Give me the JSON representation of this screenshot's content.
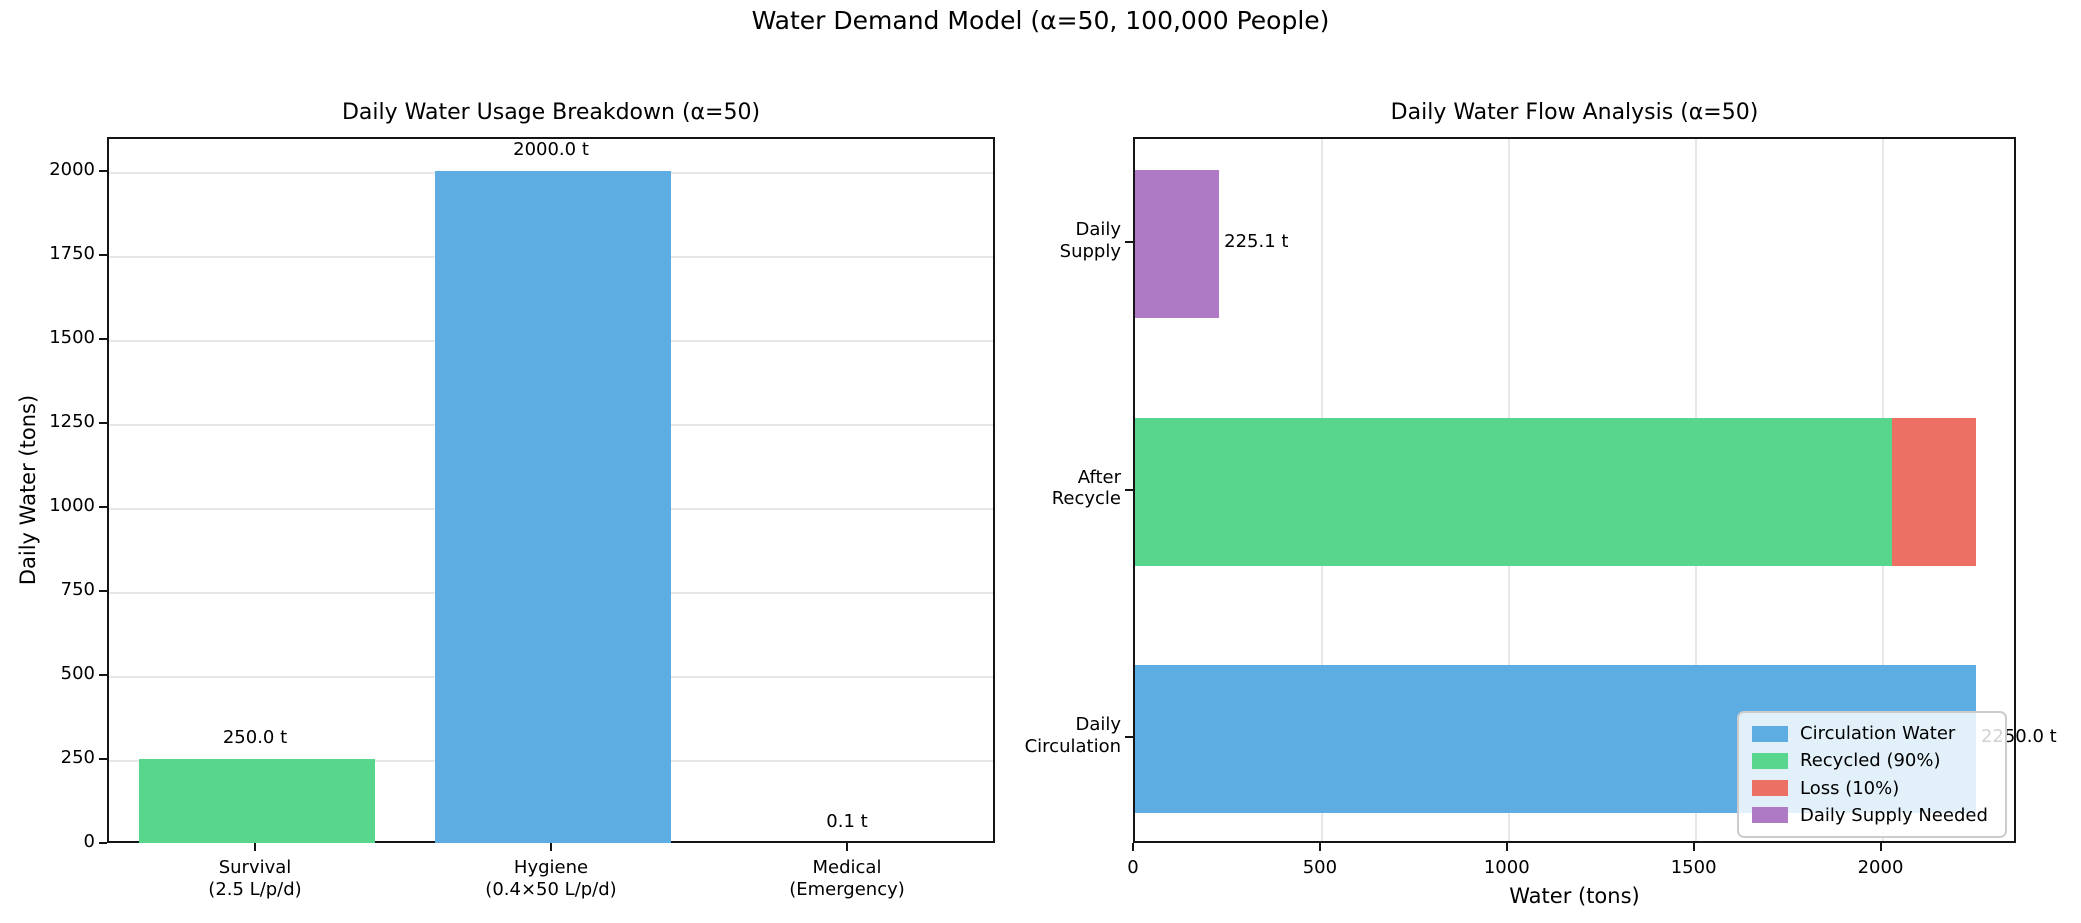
{
  "figure": {
    "suptitle": "Water Demand Model (α=50, 100,000 People)",
    "background": "#ffffff"
  },
  "colors": {
    "circulation_blue": "#5DADE2",
    "recycled_green": "#58D68D",
    "loss_red": "#EC7063",
    "supply_purple": "#AF7AC5",
    "grid": "#e7e7e7",
    "spine": "#151515"
  },
  "chart_data": [
    {
      "type": "bar",
      "title": "Daily Water Usage Breakdown (α=50)",
      "xlabel": "",
      "ylabel": "Daily Water (tons)",
      "ylim": [
        0,
        2100
      ],
      "yticks": [
        0,
        250,
        500,
        750,
        1000,
        1250,
        1500,
        1750,
        2000
      ],
      "categories": [
        "Survival\n(2.5 L/p/d)",
        "Hygiene\n(0.4×50 L/p/d)",
        "Medical\n(Emergency)"
      ],
      "values": [
        250.0,
        2000.0,
        0.1
      ],
      "bar_colors": [
        "#58D68D",
        "#5DADE2",
        "#EC7063"
      ],
      "value_labels": [
        "250.0 t",
        "2000.0 t",
        "0.1 t"
      ],
      "grid": "y",
      "legend": null
    },
    {
      "type": "barh-stacked",
      "title": "Daily Water Flow Analysis (α=50)",
      "xlabel": "Water (tons)",
      "ylabel": "",
      "xlim": [
        0,
        2362.5
      ],
      "xticks": [
        0,
        500,
        1000,
        1500,
        2000
      ],
      "categories": [
        "Daily\nSupply",
        "After\nRecycle",
        "Daily\nCirculation"
      ],
      "rows": [
        {
          "category": "Daily\nSupply",
          "segments": [
            {
              "name": "Daily Supply Needed",
              "value": 225.1,
              "color": "#AF7AC5"
            }
          ],
          "value_label": "225.1 t"
        },
        {
          "category": "After\nRecycle",
          "segments": [
            {
              "name": "Recycled (90%)",
              "value": 2025.0,
              "color": "#58D68D"
            },
            {
              "name": "Loss (10%)",
              "value": 225.0,
              "color": "#EC7063"
            }
          ],
          "value_label": ""
        },
        {
          "category": "Daily\nCirculation",
          "segments": [
            {
              "name": "Circulation Water",
              "value": 2250.0,
              "color": "#5DADE2"
            }
          ],
          "value_label": "2250.0 t"
        }
      ],
      "grid": "x",
      "legend": {
        "position": "lower right",
        "entries": [
          {
            "label": "Circulation Water",
            "color": "#5DADE2"
          },
          {
            "label": "Recycled (90%)",
            "color": "#58D68D"
          },
          {
            "label": "Loss (10%)",
            "color": "#EC7063"
          },
          {
            "label": "Daily Supply Needed",
            "color": "#AF7AC5"
          }
        ]
      }
    }
  ]
}
